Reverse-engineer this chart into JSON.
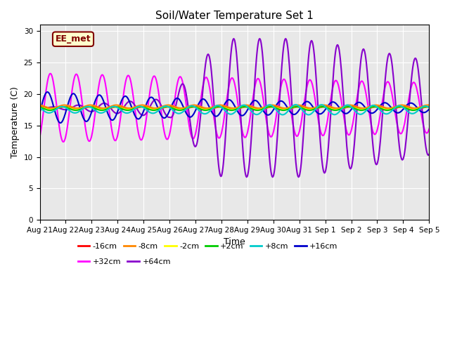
{
  "title": "Soil/Water Temperature Set 1",
  "xlabel": "Time",
  "ylabel": "Temperature (C)",
  "ylim": [
    0,
    31
  ],
  "yticks": [
    0,
    5,
    10,
    15,
    20,
    25,
    30
  ],
  "annotation_text": "EE_met",
  "annotation_bg": "#ffffcc",
  "annotation_border": "#800000",
  "annotation_text_color": "#800000",
  "bg_color": "#e8e8e8",
  "legend_entries": [
    {
      "label": "-16cm",
      "color": "#ff0000"
    },
    {
      "label": "-8cm",
      "color": "#ff8800"
    },
    {
      "label": "-2cm",
      "color": "#ffff00"
    },
    {
      "label": "+2cm",
      "color": "#00cc00"
    },
    {
      "label": "+8cm",
      "color": "#00cccc"
    },
    {
      "label": "+16cm",
      "color": "#0000cc"
    },
    {
      "label": "+32cm",
      "color": "#ff00ff"
    },
    {
      "label": "+64cm",
      "color": "#8800cc"
    }
  ],
  "n_days": 15,
  "ppd": 48,
  "base_temp": 17.8,
  "date_labels": [
    "Aug 21",
    "Aug 22",
    "Aug 23",
    "Aug 24",
    "Aug 25",
    "Aug 26",
    "Aug 27",
    "Aug 28",
    "Aug 29",
    "Aug 30",
    "Aug 31",
    "Sep 1",
    "Sep 2",
    "Sep 3",
    "Sep 4",
    "Sep 5"
  ]
}
